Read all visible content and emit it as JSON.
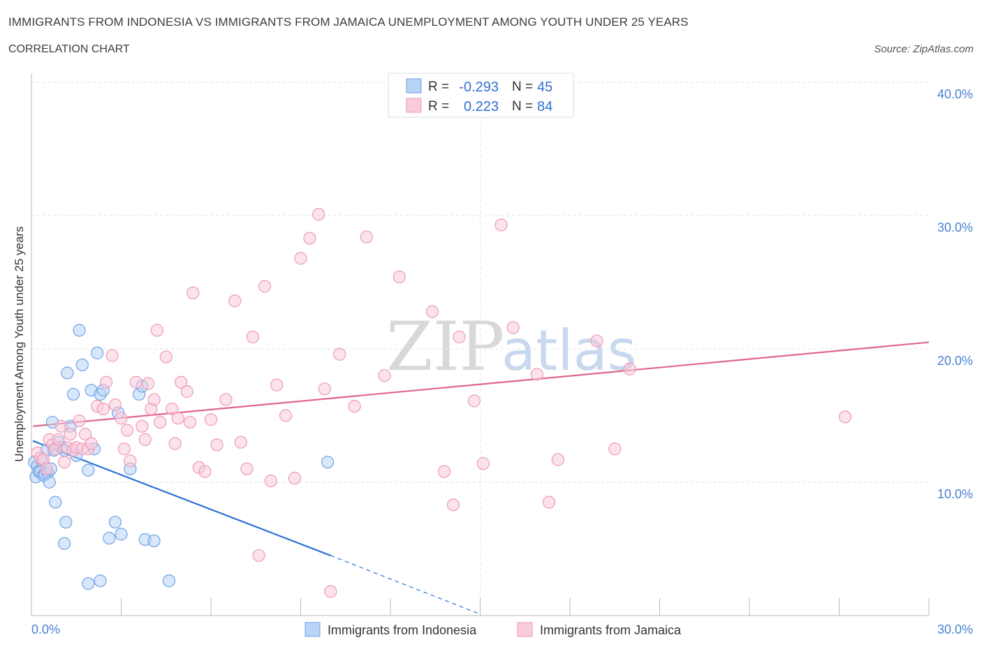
{
  "header": {
    "title": "IMMIGRANTS FROM INDONESIA VS IMMIGRANTS FROM JAMAICA UNEMPLOYMENT AMONG YOUTH UNDER 25 YEARS",
    "subtitle": "CORRELATION CHART",
    "source": "Source: ZipAtlas.com"
  },
  "watermark": {
    "zip": "ZIP",
    "atlas": "atlas"
  },
  "stats": {
    "r_label": "R =",
    "n_label": "N =",
    "rows": [
      {
        "series": "Immigrants from Indonesia",
        "r": "-0.293",
        "n": "45"
      },
      {
        "series": "Immigrants from Jamaica",
        "r": "0.223",
        "n": "84"
      }
    ]
  },
  "chart_data": {
    "type": "scatter",
    "title": "IMMIGRANTS FROM INDONESIA VS IMMIGRANTS FROM JAMAICA UNEMPLOYMENT AMONG YOUTH UNDER 25 YEARS",
    "xlabel": "",
    "ylabel": "Unemployment Among Youth under 25 years",
    "xlim": [
      0,
      30
    ],
    "ylim": [
      0,
      40
    ],
    "x_tick_labels": [
      "0.0%",
      "30.0%"
    ],
    "y_ticks": [
      10,
      20,
      30,
      40
    ],
    "y_tick_labels": [
      "10.0%",
      "20.0%",
      "30.0%",
      "40.0%"
    ],
    "grid": true,
    "legend": "bottom-center",
    "series": [
      {
        "name": "Immigrants from Indonesia",
        "color": "#6fa3e8",
        "fill": "#b9d3f5",
        "line_color": "#2f72d6",
        "trend": {
          "x0": 0.05,
          "y0": 13.1,
          "x1": 10.0,
          "y1": 4.5,
          "dash_to_x": 15.0,
          "dash_to_y": 0.1
        },
        "x": [
          0.1,
          0.15,
          0.2,
          0.25,
          0.3,
          0.35,
          0.4,
          0.45,
          0.5,
          0.55,
          0.6,
          0.65,
          0.7,
          0.75,
          0.8,
          0.9,
          1.0,
          1.1,
          1.1,
          1.15,
          1.2,
          1.3,
          1.4,
          1.5,
          1.6,
          1.7,
          1.9,
          1.9,
          2.0,
          2.1,
          2.2,
          2.3,
          2.3,
          2.4,
          2.6,
          2.8,
          2.9,
          3.0,
          3.3,
          3.6,
          3.7,
          3.8,
          4.1,
          4.6,
          9.9
        ],
        "y": [
          11.5,
          10.4,
          11.2,
          10.8,
          10.8,
          11.6,
          10.5,
          10.6,
          12.4,
          10.7,
          10.0,
          11.0,
          14.5,
          12.4,
          8.5,
          13.0,
          12.6,
          12.4,
          5.4,
          7.0,
          18.2,
          14.2,
          16.6,
          12.0,
          21.4,
          18.8,
          10.9,
          2.4,
          16.9,
          12.5,
          19.7,
          2.6,
          16.6,
          16.9,
          5.8,
          7.0,
          15.2,
          6.1,
          11.0,
          16.6,
          17.2,
          5.7,
          5.6,
          2.6,
          11.5
        ]
      },
      {
        "name": "Immigrants from Jamaica",
        "color": "#ee9ab6",
        "fill": "#f9ccdb",
        "line_color": "#e0658f",
        "trend": {
          "x0": 0.05,
          "y0": 14.2,
          "x1": 30.0,
          "y1": 20.5
        },
        "x": [
          0.2,
          0.3,
          0.4,
          0.5,
          0.6,
          0.7,
          0.8,
          0.9,
          1.0,
          1.1,
          1.2,
          1.3,
          1.4,
          1.5,
          1.6,
          1.7,
          1.8,
          1.9,
          2.0,
          2.2,
          2.4,
          2.5,
          2.7,
          2.8,
          3.0,
          3.1,
          3.2,
          3.3,
          3.5,
          3.7,
          3.8,
          3.9,
          4.0,
          4.1,
          4.2,
          4.3,
          4.5,
          4.7,
          4.8,
          4.9,
          5.0,
          5.2,
          5.3,
          5.4,
          5.6,
          5.8,
          6.0,
          6.2,
          6.5,
          6.8,
          7.0,
          7.2,
          7.4,
          7.6,
          7.8,
          8.0,
          8.2,
          8.5,
          8.8,
          9.0,
          9.3,
          9.6,
          9.8,
          10.0,
          10.3,
          10.8,
          11.2,
          11.8,
          12.3,
          13.4,
          13.8,
          14.1,
          14.3,
          14.8,
          15.1,
          15.7,
          16.1,
          16.9,
          17.3,
          17.6,
          18.9,
          19.5,
          20.0,
          27.2
        ],
        "y": [
          12.2,
          11.8,
          11.7,
          11.0,
          13.2,
          12.8,
          12.5,
          13.2,
          14.2,
          11.5,
          12.6,
          13.6,
          12.4,
          12.6,
          14.6,
          12.5,
          13.6,
          12.5,
          12.9,
          15.7,
          15.5,
          17.5,
          19.5,
          15.8,
          14.8,
          12.5,
          13.9,
          11.6,
          17.5,
          14.2,
          13.2,
          17.4,
          15.5,
          16.2,
          21.4,
          14.5,
          19.4,
          15.5,
          12.9,
          14.8,
          17.5,
          16.8,
          14.5,
          24.2,
          11.1,
          10.8,
          14.7,
          12.8,
          16.2,
          23.6,
          13.0,
          11.0,
          20.9,
          4.5,
          24.7,
          10.1,
          17.3,
          15.0,
          10.3,
          26.8,
          28.3,
          30.1,
          17.0,
          1.8,
          19.6,
          15.7,
          28.4,
          18.0,
          25.4,
          22.8,
          10.8,
          8.3,
          20.9,
          16.1,
          11.4,
          29.3,
          21.6,
          18.1,
          8.5,
          11.7,
          20.6,
          12.5,
          18.5,
          14.9
        ]
      }
    ]
  }
}
